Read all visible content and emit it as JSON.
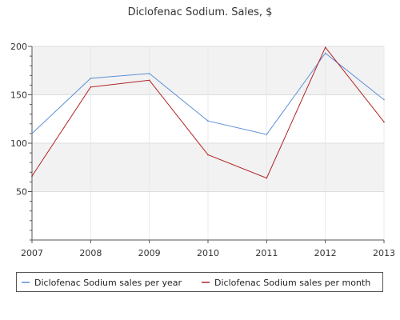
{
  "chart_data": {
    "type": "line",
    "title": "Diclofenac Sodium. Sales, $",
    "xlabel": "",
    "ylabel": "",
    "categories": [
      "2007",
      "2008",
      "2009",
      "2010",
      "2011",
      "2012",
      "2013"
    ],
    "ylim": [
      0,
      200
    ],
    "yticks": [
      50,
      100,
      150,
      200
    ],
    "grid": true,
    "legend_position": "bottom",
    "series": [
      {
        "name": "Diclofenac Sodium sales per year",
        "color": "#5b8fd8",
        "values": [
          110,
          167,
          172,
          123,
          109,
          193,
          145
        ]
      },
      {
        "name": "Diclofenac Sodium sales per month",
        "color": "#b22222",
        "values": [
          66,
          158,
          165,
          88,
          64,
          199,
          122
        ]
      }
    ]
  }
}
